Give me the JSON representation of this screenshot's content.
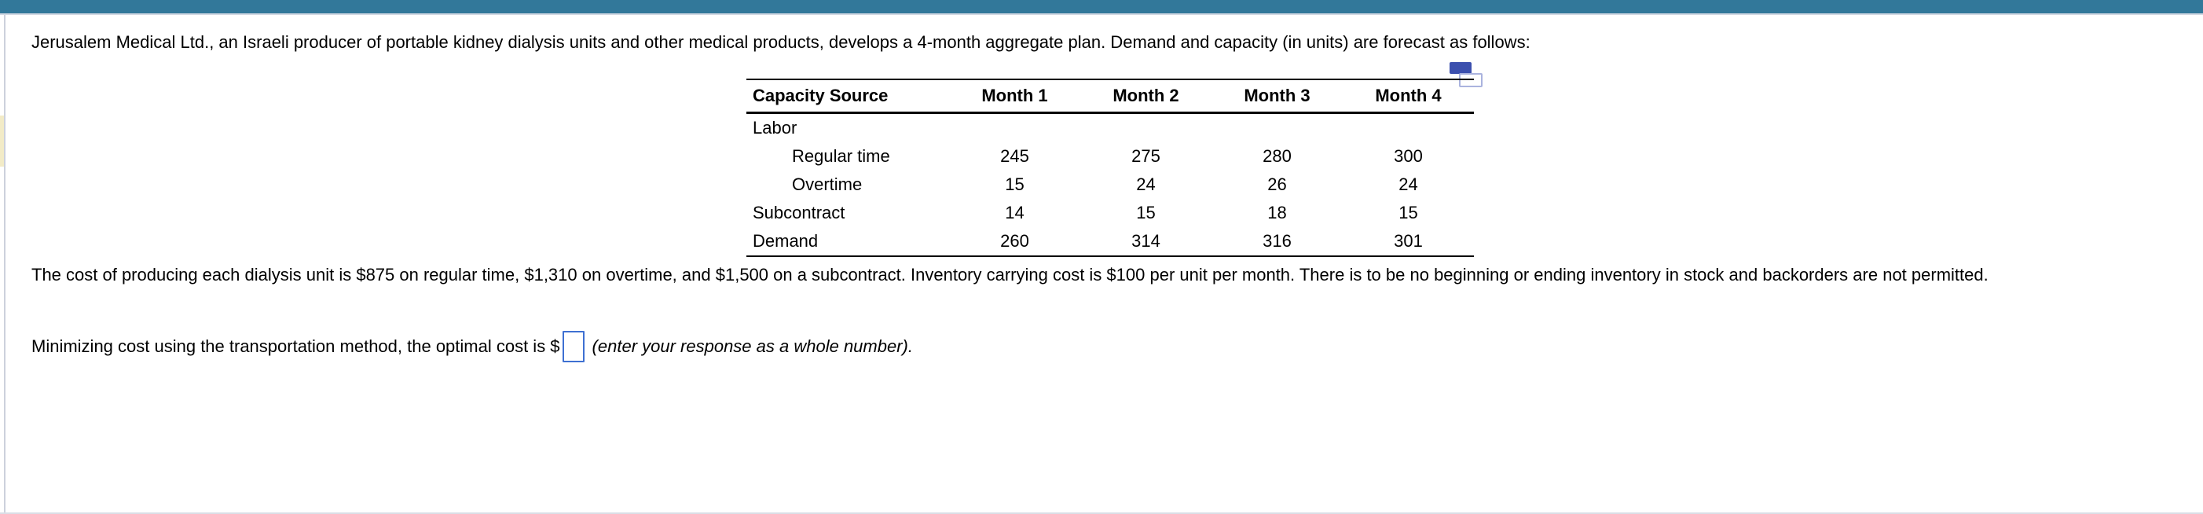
{
  "page": {
    "topbar_color": "#32789a",
    "accent_input_border": "#3e70d2"
  },
  "problem": {
    "intro": "Jerusalem Medical Ltd., an Israeli producer of portable kidney dialysis units and other medical products, develops a 4-month aggregate plan. Demand and capacity (in units) are forecast as follows:",
    "cost_paragraph": "The cost of producing each dialysis unit is $875 on regular time, $1,310 on overtime, and $1,500 on a subcontract. Inventory carrying cost is $100 per unit per month. There is to be no beginning or ending inventory in stock and backorders are not permitted.",
    "question_prefix": "Minimizing cost using the transportation method, the optimal cost is $",
    "question_suffix": "(enter your response as a whole number).",
    "answer_value": ""
  },
  "icons": {
    "copy_icon": "duplicate-question-icon"
  },
  "table": {
    "headers": [
      "Capacity Source",
      "Month 1",
      "Month 2",
      "Month 3",
      "Month 4"
    ],
    "rows": [
      {
        "label": "Labor",
        "indent": false,
        "values": [
          "",
          "",
          "",
          ""
        ]
      },
      {
        "label": "Regular time",
        "indent": true,
        "values": [
          "245",
          "275",
          "280",
          "300"
        ]
      },
      {
        "label": "Overtime",
        "indent": true,
        "values": [
          "15",
          "24",
          "26",
          "24"
        ]
      },
      {
        "label": "Subcontract",
        "indent": false,
        "values": [
          "14",
          "15",
          "18",
          "15"
        ]
      },
      {
        "label": "Demand",
        "indent": false,
        "values": [
          "260",
          "314",
          "316",
          "301"
        ]
      }
    ]
  }
}
